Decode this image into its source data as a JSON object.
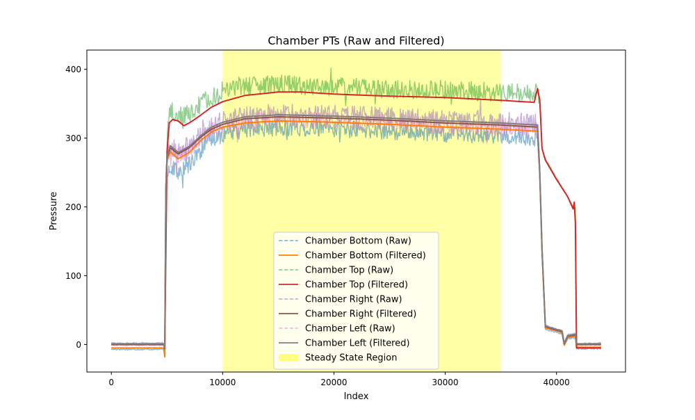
{
  "chart_data": {
    "type": "line",
    "title": "Chamber PTs (Raw and Filtered)",
    "xlabel": "Index",
    "ylabel": "Pressure",
    "xlim": [
      -2200,
      46200
    ],
    "ylim": [
      -40,
      428
    ],
    "xticks": [
      0,
      10000,
      20000,
      30000,
      40000
    ],
    "yticks": [
      0,
      100,
      200,
      300,
      400
    ],
    "grid": false,
    "legend_position": "lower center",
    "steady_state_region": {
      "label": "Steady State Region",
      "x_start": 10000,
      "x_end": 35000,
      "color": "#ffff00",
      "alpha": 0.35
    },
    "series": [
      {
        "name": "Chamber Bottom (Raw)",
        "style": "dashed",
        "color": "#1f77b4",
        "alpha": 0.5,
        "noise": 12,
        "x": [
          0,
          4700,
          4800,
          4900,
          5000,
          5300,
          6000,
          7000,
          8000,
          9000,
          10000,
          12000,
          15000,
          20000,
          25000,
          30000,
          35000,
          38300,
          38500,
          38700,
          39000,
          40000,
          40500,
          40700,
          41000,
          41700,
          41800,
          44000
        ],
        "y": [
          -7,
          -7,
          -15,
          200,
          252,
          260,
          250,
          262,
          282,
          298,
          305,
          312,
          315,
          313,
          310,
          306,
          303,
          300,
          240,
          130,
          22,
          18,
          15,
          -2,
          8,
          10,
          -6,
          -6
        ]
      },
      {
        "name": "Chamber Bottom (Filtered)",
        "style": "solid",
        "color": "#ff7f0e",
        "alpha": 1,
        "x": [
          0,
          4700,
          4800,
          4900,
          5000,
          5300,
          6000,
          7000,
          8000,
          9000,
          10000,
          12000,
          15000,
          20000,
          25000,
          30000,
          35000,
          38300,
          38500,
          38700,
          39000,
          40000,
          40500,
          40700,
          41000,
          41700,
          41800,
          44000
        ],
        "y": [
          -5,
          -5,
          -18,
          225,
          268,
          280,
          270,
          279,
          296,
          309,
          316,
          322,
          325,
          323,
          320,
          316,
          313,
          310,
          245,
          135,
          24,
          20,
          17,
          -1,
          10,
          12,
          -4,
          -4
        ]
      },
      {
        "name": "Chamber Top (Raw)",
        "style": "dashed",
        "color": "#2ca02c",
        "alpha": 0.5,
        "noise": 14,
        "x": [
          0,
          4700,
          4800,
          5000,
          5200,
          5500,
          6000,
          7000,
          8000,
          9000,
          10000,
          12000,
          15000,
          20000,
          25000,
          30000,
          35000,
          38000,
          38300,
          38500,
          38700,
          39000,
          40000,
          41000,
          41500,
          41700,
          41800,
          44000
        ],
        "y": [
          0,
          0,
          -2,
          300,
          340,
          342,
          330,
          335,
          348,
          360,
          368,
          375,
          378,
          375,
          372,
          370,
          367,
          364,
          378,
          350,
          285,
          270,
          242,
          215,
          200,
          200,
          0,
          0
        ]
      },
      {
        "name": "Chamber Top (Filtered)",
        "style": "solid",
        "color": "#d62728",
        "alpha": 1,
        "x": [
          0,
          4700,
          4800,
          5000,
          5200,
          5500,
          6000,
          6500,
          7000,
          8000,
          9000,
          10000,
          12000,
          15000,
          17000,
          20000,
          25000,
          30000,
          35000,
          38000,
          38200,
          38300,
          38500,
          38700,
          39000,
          40000,
          41000,
          41500,
          41600,
          41700,
          41800,
          44000
        ],
        "y": [
          0,
          0,
          -5,
          280,
          322,
          327,
          325,
          318,
          322,
          333,
          345,
          353,
          362,
          367,
          367,
          364,
          361,
          359,
          355,
          352,
          366,
          372,
          355,
          285,
          268,
          240,
          215,
          197,
          207,
          175,
          -5,
          -5
        ]
      },
      {
        "name": "Chamber Right (Raw)",
        "style": "dashed",
        "color": "#9467bd",
        "alpha": 0.5,
        "noise": 14,
        "x": [
          0,
          4700,
          4800,
          4900,
          5000,
          5300,
          6000,
          7000,
          8000,
          9000,
          10000,
          12000,
          15000,
          20000,
          25000,
          30000,
          35000,
          38300,
          38500,
          38700,
          39000,
          40000,
          40500,
          40700,
          41000,
          41700,
          41800,
          44000
        ],
        "y": [
          2,
          2,
          -5,
          230,
          275,
          290,
          280,
          290,
          305,
          318,
          325,
          333,
          336,
          334,
          331,
          328,
          325,
          322,
          250,
          140,
          28,
          22,
          20,
          2,
          14,
          16,
          2,
          2
        ]
      },
      {
        "name": "Chamber Right (Filtered)",
        "style": "solid",
        "color": "#8c564b",
        "alpha": 1,
        "x": [
          0,
          4700,
          4800,
          4900,
          5000,
          5300,
          6000,
          7000,
          8000,
          9000,
          10000,
          12000,
          15000,
          20000,
          25000,
          30000,
          35000,
          38300,
          38500,
          38700,
          39000,
          40000,
          40500,
          40700,
          41000,
          41700,
          41800,
          44000
        ],
        "y": [
          0,
          0,
          -6,
          228,
          272,
          286,
          277,
          286,
          301,
          313,
          320,
          328,
          331,
          329,
          326,
          322,
          319,
          316,
          248,
          138,
          26,
          21,
          19,
          1,
          12,
          14,
          0,
          0
        ]
      },
      {
        "name": "Chamber Left (Raw)",
        "style": "dashed",
        "color": "#e377c2",
        "alpha": 0.5,
        "noise": 12,
        "x": [
          0,
          4700,
          4800,
          4900,
          5000,
          5300,
          6000,
          7000,
          8000,
          9000,
          10000,
          12000,
          15000,
          20000,
          25000,
          30000,
          35000,
          38300,
          38500,
          38700,
          39000,
          40000,
          40500,
          40700,
          41000,
          41700,
          41800,
          44000
        ],
        "y": [
          -1,
          -1,
          -6,
          226,
          270,
          284,
          274,
          283,
          298,
          310,
          317,
          324,
          327,
          325,
          322,
          318,
          315,
          312,
          245,
          136,
          25,
          20,
          18,
          0,
          11,
          13,
          -1,
          -1
        ]
      },
      {
        "name": "Chamber Left (Filtered)",
        "style": "solid",
        "color": "#7f7f7f",
        "alpha": 1,
        "x": [
          0,
          4700,
          4800,
          4900,
          5000,
          5300,
          6000,
          7000,
          8000,
          9000,
          10000,
          12000,
          15000,
          20000,
          25000,
          30000,
          35000,
          38300,
          38500,
          38700,
          39000,
          40000,
          40500,
          40700,
          41000,
          41700,
          41800,
          44000
        ],
        "y": [
          1,
          1,
          -5,
          230,
          274,
          289,
          279,
          288,
          303,
          316,
          323,
          331,
          334,
          332,
          329,
          325,
          322,
          319,
          250,
          139,
          27,
          22,
          20,
          2,
          13,
          15,
          1,
          1
        ]
      }
    ]
  }
}
